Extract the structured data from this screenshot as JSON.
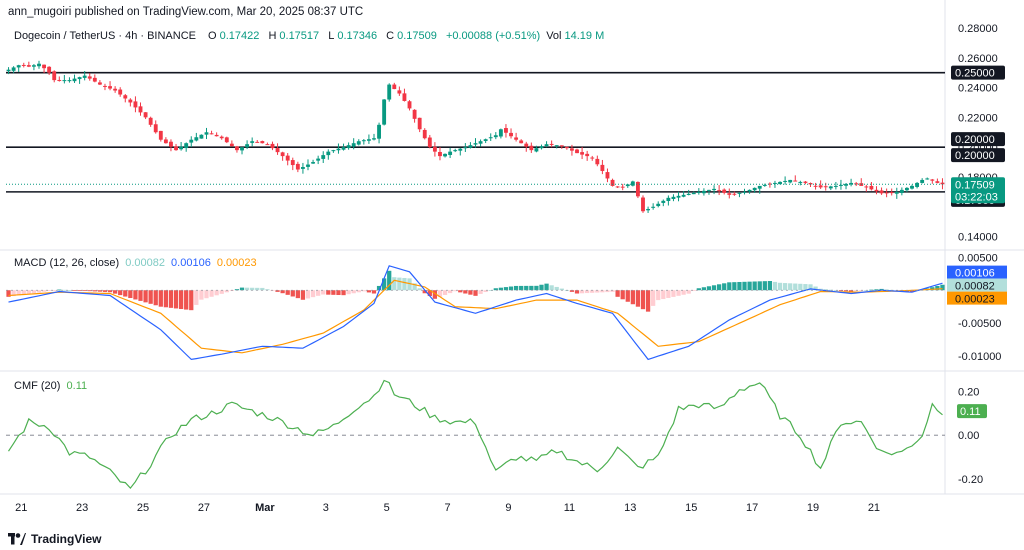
{
  "header": {
    "publish_line": "ann_mugoiri published on TradingView.com, Mar 20, 2025 08:37 UTC"
  },
  "symbol_legend": {
    "symbol": "Dogecoin / TetherUS · 4h · BINANCE",
    "o_label": "O",
    "o": "0.17422",
    "h_label": "H",
    "h": "0.17517",
    "l_label": "L",
    "l": "0.17346",
    "c_label": "C",
    "c": "0.17509",
    "change": "+0.00088 (+0.51%)",
    "vol_label": "Vol",
    "vol": "14.19 M"
  },
  "macd_legend": {
    "label": "MACD (12, 26, close)",
    "hist": "0.00082",
    "macd": "0.00106",
    "signal": "0.00023"
  },
  "cmf_legend": {
    "label": "CMF (20)",
    "value": "0.11"
  },
  "footer": {
    "brand": "TradingView"
  },
  "colors": {
    "up": "#089981",
    "down": "#f23645",
    "macd": "#2962ff",
    "signal": "#ff9800",
    "hist_pos": "#26a69a",
    "hist_pos_light": "#b2dfdb",
    "hist_neg": "#ef5350",
    "hist_neg_light": "#ffcdd2",
    "cmf": "#4caf50"
  },
  "chart_data": [
    {
      "type": "candlestick",
      "title": "Dogecoin / TetherUS · 4h · BINANCE",
      "x_ticks": [
        "21",
        "23",
        "25",
        "27",
        "Mar",
        "3",
        "5",
        "7",
        "9",
        "11",
        "13",
        "15",
        "17",
        "19",
        "21"
      ],
      "x_tick_day_index": [
        0,
        2,
        4,
        6,
        8,
        10,
        12,
        14,
        16,
        18,
        20,
        22,
        24,
        26,
        28
      ],
      "x_first_bar_day": -0.5,
      "bars_per_day": 6,
      "y_ticks": [
        "0.28000",
        "0.26000",
        "0.24000",
        "0.22000",
        "0.20000",
        "0.18000",
        "0.14000"
      ],
      "ylim": [
        0.133,
        0.284
      ],
      "horizontal_lines": [
        0.25,
        0.2,
        0.17
      ],
      "price_labels": [
        {
          "value": 0.25,
          "text": "0.25000",
          "style": "dark"
        },
        {
          "value": 0.2,
          "text": "0.20000",
          "style": "dark"
        },
        {
          "value": 0.2,
          "text": "0.20000",
          "style": "dark"
        },
        {
          "value": 0.17,
          "text": "0.17000",
          "style": "dark"
        },
        {
          "value": 0.17509,
          "text": "0.17509",
          "sub": "03:22:03",
          "style": "green"
        }
      ],
      "close_anchors": [
        [
          0,
          0.252
        ],
        [
          2,
          0.255
        ],
        [
          4,
          0.254
        ],
        [
          6,
          0.256
        ],
        [
          8,
          0.25
        ],
        [
          9,
          0.245
        ],
        [
          12,
          0.245
        ],
        [
          15,
          0.248
        ],
        [
          18,
          0.242
        ],
        [
          21,
          0.238
        ],
        [
          24,
          0.23
        ],
        [
          27,
          0.22
        ],
        [
          30,
          0.205
        ],
        [
          33,
          0.198
        ],
        [
          36,
          0.205
        ],
        [
          39,
          0.21
        ],
        [
          42,
          0.206
        ],
        [
          45,
          0.198
        ],
        [
          48,
          0.204
        ],
        [
          51,
          0.202
        ],
        [
          54,
          0.194
        ],
        [
          57,
          0.185
        ],
        [
          60,
          0.19
        ],
        [
          63,
          0.197
        ],
        [
          66,
          0.2
        ],
        [
          69,
          0.204
        ],
        [
          72,
          0.206
        ],
        [
          73,
          0.215
        ],
        [
          74,
          0.232
        ],
        [
          75,
          0.242
        ],
        [
          77,
          0.236
        ],
        [
          79,
          0.226
        ],
        [
          81,
          0.212
        ],
        [
          83,
          0.2
        ],
        [
          85,
          0.194
        ],
        [
          87,
          0.197
        ],
        [
          90,
          0.2
        ],
        [
          93,
          0.204
        ],
        [
          96,
          0.208
        ],
        [
          97,
          0.212
        ],
        [
          100,
          0.205
        ],
        [
          103,
          0.198
        ],
        [
          106,
          0.202
        ],
        [
          109,
          0.201
        ],
        [
          112,
          0.196
        ],
        [
          115,
          0.193
        ],
        [
          117,
          0.184
        ],
        [
          119,
          0.174
        ],
        [
          121,
          0.173
        ],
        [
          123,
          0.177
        ],
        [
          125,
          0.157
        ],
        [
          127,
          0.16
        ],
        [
          130,
          0.166
        ],
        [
          133,
          0.168
        ],
        [
          136,
          0.17
        ],
        [
          139,
          0.172
        ],
        [
          142,
          0.168
        ],
        [
          145,
          0.17
        ],
        [
          148,
          0.174
        ],
        [
          151,
          0.176
        ],
        [
          154,
          0.178
        ],
        [
          157,
          0.176
        ],
        [
          160,
          0.173
        ],
        [
          163,
          0.174
        ],
        [
          166,
          0.176
        ],
        [
          169,
          0.173
        ],
        [
          172,
          0.169
        ],
        [
          175,
          0.17
        ],
        [
          178,
          0.174
        ],
        [
          180,
          0.178
        ],
        [
          181,
          0.179
        ],
        [
          183,
          0.176
        ],
        [
          184,
          0.17509
        ]
      ]
    },
    {
      "type": "macd",
      "title": "MACD (12, 26, close)",
      "y_ticks": [
        "0.00500",
        "-0.00500",
        "-0.01000"
      ],
      "ylim": [
        -0.0118,
        0.0058
      ],
      "current_labels": [
        {
          "value": 0.00106,
          "text": "0.00106",
          "color": "#2962ff"
        },
        {
          "value": 0.00082,
          "text": "0.00082",
          "color": "#b2dfdb"
        },
        {
          "value": 0.00023,
          "text": "0.00023",
          "color": "#ff9800"
        }
      ],
      "macd_anchors": [
        [
          0,
          -0.0018
        ],
        [
          10,
          -0.0002
        ],
        [
          20,
          -0.0008
        ],
        [
          30,
          -0.006
        ],
        [
          36,
          -0.0105
        ],
        [
          42,
          -0.0097
        ],
        [
          50,
          -0.0085
        ],
        [
          58,
          -0.0088
        ],
        [
          66,
          -0.0055
        ],
        [
          72,
          -0.002
        ],
        [
          75,
          0.0037
        ],
        [
          79,
          0.0028
        ],
        [
          84,
          -0.0018
        ],
        [
          92,
          -0.0035
        ],
        [
          100,
          -0.0015
        ],
        [
          106,
          -0.0005
        ],
        [
          112,
          -0.002
        ],
        [
          119,
          -0.0035
        ],
        [
          126,
          -0.0105
        ],
        [
          134,
          -0.0085
        ],
        [
          142,
          -0.0045
        ],
        [
          150,
          -0.0015
        ],
        [
          158,
          0.0002
        ],
        [
          166,
          -0.0005
        ],
        [
          172,
          0.0
        ],
        [
          178,
          -0.0003
        ],
        [
          184,
          0.00106
        ]
      ],
      "signal_anchors": [
        [
          0,
          -0.0008
        ],
        [
          10,
          -0.0003
        ],
        [
          20,
          -0.0005
        ],
        [
          30,
          -0.0035
        ],
        [
          38,
          -0.0088
        ],
        [
          46,
          -0.0095
        ],
        [
          54,
          -0.0082
        ],
        [
          62,
          -0.0065
        ],
        [
          70,
          -0.003
        ],
        [
          76,
          0.0015
        ],
        [
          82,
          0.0005
        ],
        [
          88,
          -0.0025
        ],
        [
          96,
          -0.0028
        ],
        [
          104,
          -0.0015
        ],
        [
          112,
          -0.0015
        ],
        [
          120,
          -0.0035
        ],
        [
          128,
          -0.0085
        ],
        [
          136,
          -0.0078
        ],
        [
          144,
          -0.005
        ],
        [
          152,
          -0.0022
        ],
        [
          160,
          -0.0002
        ],
        [
          168,
          -0.0003
        ],
        [
          176,
          -0.0001
        ],
        [
          184,
          0.00023
        ]
      ]
    },
    {
      "type": "line",
      "title": "CMF (20)",
      "y_ticks": [
        "0.20",
        "0.00",
        "-0.20"
      ],
      "ylim": [
        -0.26,
        0.28
      ],
      "zero_line": 0,
      "current_label": {
        "value": 0.11,
        "text": "0.11"
      },
      "series_anchors": [
        [
          0,
          -0.07
        ],
        [
          4,
          0.06
        ],
        [
          8,
          0.04
        ],
        [
          12,
          -0.08
        ],
        [
          16,
          -0.1
        ],
        [
          20,
          -0.17
        ],
        [
          24,
          -0.25
        ],
        [
          28,
          -0.13
        ],
        [
          32,
          0.0
        ],
        [
          36,
          0.07
        ],
        [
          40,
          0.1
        ],
        [
          44,
          0.14
        ],
        [
          48,
          0.11
        ],
        [
          52,
          0.08
        ],
        [
          56,
          0.04
        ],
        [
          60,
          0.0
        ],
        [
          64,
          0.04
        ],
        [
          68,
          0.12
        ],
        [
          72,
          0.18
        ],
        [
          74,
          0.26
        ],
        [
          76,
          0.19
        ],
        [
          80,
          0.14
        ],
        [
          84,
          0.08
        ],
        [
          88,
          0.06
        ],
        [
          92,
          0.06
        ],
        [
          96,
          -0.17
        ],
        [
          100,
          -0.1
        ],
        [
          104,
          -0.12
        ],
        [
          108,
          -0.07
        ],
        [
          112,
          -0.12
        ],
        [
          116,
          -0.16
        ],
        [
          120,
          -0.06
        ],
        [
          124,
          -0.15
        ],
        [
          128,
          -0.1
        ],
        [
          132,
          0.12
        ],
        [
          136,
          0.14
        ],
        [
          140,
          0.12
        ],
        [
          144,
          0.21
        ],
        [
          148,
          0.24
        ],
        [
          152,
          0.09
        ],
        [
          156,
          0.0
        ],
        [
          160,
          -0.15
        ],
        [
          164,
          0.06
        ],
        [
          168,
          0.06
        ],
        [
          172,
          -0.08
        ],
        [
          176,
          -0.08
        ],
        [
          180,
          0.0
        ],
        [
          182,
          0.14
        ],
        [
          184,
          0.11
        ]
      ]
    }
  ]
}
